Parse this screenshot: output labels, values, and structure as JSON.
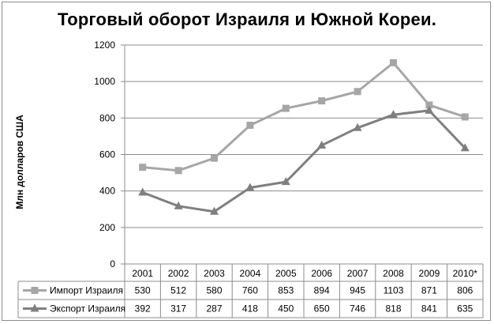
{
  "chart_data": {
    "type": "line",
    "title": "Торговый оборот Израиля и Южной Кореи.",
    "ylabel": "Млн долларов США",
    "xlabel": "",
    "ylim": [
      0,
      1200
    ],
    "yticks": [
      0,
      200,
      400,
      600,
      800,
      1000,
      1200
    ],
    "categories": [
      "2001",
      "2002",
      "2003",
      "2004",
      "2005",
      "2006",
      "2007",
      "2008",
      "2009",
      "2010*"
    ],
    "series": [
      {
        "name": "Импорт Израиля",
        "color": "#a6a6a6",
        "marker": "square",
        "values": [
          530,
          512,
          580,
          760,
          853,
          894,
          945,
          1103,
          871,
          806
        ]
      },
      {
        "name": "Экспорт Израиля",
        "color": "#7f7f7f",
        "marker": "triangle",
        "values": [
          392,
          317,
          287,
          418,
          450,
          650,
          746,
          818,
          841,
          635
        ]
      }
    ],
    "grid": true,
    "legend": "data-table",
    "data_table": true
  }
}
